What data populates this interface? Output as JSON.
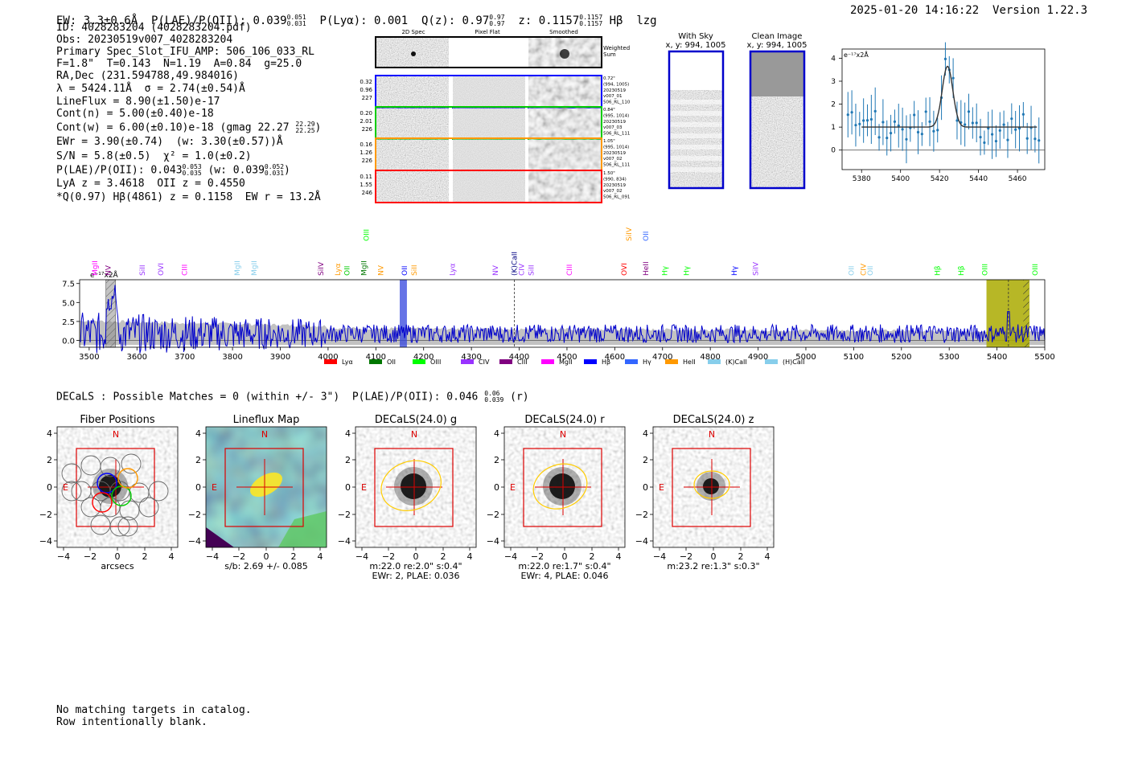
{
  "header": {
    "ew": "EW: 3.3±0.6Å",
    "plae_label": "P(LAE)/P(OII): 0.039",
    "plae_hi": "0.051",
    "plae_lo": "0.031",
    "plya": "P(Lyα): 0.001",
    "qz_label": "Q(z): 0.97",
    "qz_hi": "0.97",
    "qz_lo": "0.97",
    "z_label": "z: 0.1157",
    "z_hi": "0.1157",
    "z_lo": "0.1157",
    "line_id": "Hβ",
    "flag": "lzg",
    "timestamp": "2025-01-20 14:16:22",
    "version": "Version 1.22.3"
  },
  "info": {
    "id": "ID: 4028283204 (4028283204.pdf)",
    "obs": "Obs: 20230519v007_4028283204",
    "primary": "Primary Spec_Slot_IFU_AMP: 506_106_033_RL",
    "params": "F=1.8\"  T=0.143  N=1.19  A=0.84  g=25.0",
    "radec": "RA,Dec (231.594788,49.984016)",
    "lambda": "λ = 5424.11Å  σ = 2.74(±0.54)Å",
    "lineflux": "LineFlux = 8.90(±1.50)e-17",
    "cont_n": "Cont(n) = 5.00(±0.40)e-18",
    "cont_w": "Cont(w) = 6.00(±0.10)e-18 (gmag 22.27",
    "gmag_hi": "22.29",
    "gmag_lo": "22.25",
    "cont_w_end": ")",
    "ewr": "EWr = 3.90(±0.74)  (w: 3.30(±0.57))Å",
    "sn": "S/N = 5.8(±0.5)  χ² = 1.0(±0.2)",
    "plae": "P(LAE)/P(OII): 0.043",
    "plae_hi": "0.053",
    "plae_lo": "0.035",
    "plae_w": "(w: 0.039",
    "plae_w_hi": "0.052",
    "plae_w_lo": "0.031",
    "plae_w_end": ")",
    "lya": "LyA z = 3.4618  OII z = 0.4550",
    "q": "*Q(0.97) Hβ(4861) z = 0.1158  EW r = 13.2Å"
  },
  "cutouts": {
    "col_titles": [
      "2D Spec",
      "Pixel Flat",
      "Smoothed"
    ],
    "weighted_label": [
      "Weighted",
      "Sum"
    ],
    "rows": [
      {
        "left": [
          "0.32",
          "0.96",
          "227"
        ],
        "right": [
          "0.72\"",
          "(994, 1005)",
          "20230519",
          "v007_01",
          "506_RL_110"
        ],
        "color": "#0000ff"
      },
      {
        "left": [
          "0.20",
          "2.01",
          "226"
        ],
        "right": [
          "0.84\"",
          "(995, 1014)",
          "20230519",
          "v007_03",
          "506_RL_111"
        ],
        "color": "#00cc00"
      },
      {
        "left": [
          "0.16",
          "1.26",
          "226"
        ],
        "right": [
          "1.05\"",
          "(995, 1014)",
          "20230519",
          "v007_02",
          "506_RL_111"
        ],
        "color": "#ff9900"
      },
      {
        "left": [
          "0.11",
          "1.55",
          "246"
        ],
        "right": [
          "1.50\"",
          "(990, 834)",
          "20230519",
          "v007_02",
          "506_RL_091"
        ],
        "color": "#ff0000"
      }
    ]
  },
  "sky": {
    "with_sky_title": "With Sky",
    "with_sky_coord": "x, y: 994, 1005",
    "clean_title": "Clean Image",
    "clean_coord": "x, y: 994, 1005"
  },
  "zoom_chart": {
    "ylabel": "e⁻¹⁷x2Å",
    "xticks": [
      "5380",
      "5400",
      "5420",
      "5440",
      "5460"
    ],
    "yticks": [
      "0",
      "1",
      "2",
      "3",
      "4"
    ]
  },
  "spectrum": {
    "ylabel": "e⁻¹⁷x2Å",
    "yticks": [
      "0.0",
      "2.5",
      "5.0",
      "7.5"
    ],
    "xticks": [
      "3500",
      "3600",
      "3700",
      "3800",
      "3900",
      "4000",
      "4100",
      "4200",
      "4300",
      "4400",
      "4500",
      "4600",
      "4700",
      "4800",
      "4900",
      "5000",
      "5100",
      "5200",
      "5300",
      "5400",
      "5500"
    ],
    "legend": [
      {
        "label": "Lyα",
        "color": "#ff0000"
      },
      {
        "label": "OII",
        "color": "#007700"
      },
      {
        "label": "OIII",
        "color": "#00ff00"
      },
      {
        "label": "CIV",
        "color": "#9933ff"
      },
      {
        "label": "CIII",
        "color": "#800080"
      },
      {
        "label": "MgII",
        "color": "#ff00ff"
      },
      {
        "label": "Hβ",
        "color": "#0000ff"
      },
      {
        "label": "Hγ",
        "color": "#3366ff"
      },
      {
        "label": "HeII",
        "color": "#ff9900"
      },
      {
        "label": "(K)CaII",
        "color": "#87ceeb"
      },
      {
        "label": "(H)CaII",
        "color": "#87ceeb"
      }
    ],
    "line_labels": [
      {
        "t": "MgII",
        "c": "#ff00ff",
        "w": 3512,
        "row": 1
      },
      {
        "t": "NV",
        "c": "#800080",
        "w": 3540,
        "row": 1
      },
      {
        "t": "SiII",
        "c": "#9933ff",
        "w": 3611,
        "row": 1
      },
      {
        "t": "OVI",
        "c": "#9933ff",
        "w": 3650,
        "row": 1
      },
      {
        "t": "CIII",
        "c": "#ff00ff",
        "w": 3700,
        "row": 1
      },
      {
        "t": "MgII",
        "c": "#87ceeb",
        "w": 3810,
        "row": 1
      },
      {
        "t": "MgII",
        "c": "#87ceeb",
        "w": 3845,
        "row": 1
      },
      {
        "t": "SiIV",
        "c": "#800080",
        "w": 3985,
        "row": 1
      },
      {
        "t": "Lyα",
        "c": "#ff9900",
        "w": 4020,
        "row": 1
      },
      {
        "t": "OII",
        "c": "#00cc00",
        "w": 4040,
        "row": 1
      },
      {
        "t": "MgII",
        "c": "#007700",
        "w": 4075,
        "row": 1
      },
      {
        "t": "OIII",
        "c": "#00ff00",
        "w": 4080,
        "row": 0
      },
      {
        "t": "NV",
        "c": "#ff9900",
        "w": 4110,
        "row": 1
      },
      {
        "t": "OII",
        "c": "#0000ff",
        "w": 4160,
        "row": 1
      },
      {
        "t": "SiII",
        "c": "#ff9900",
        "w": 4180,
        "row": 1
      },
      {
        "t": "Lyα",
        "c": "#9933ff",
        "w": 4260,
        "row": 1
      },
      {
        "t": "NV",
        "c": "#9933ff",
        "w": 4350,
        "row": 1
      },
      {
        "t": "(K)CaII",
        "c": "#000080",
        "w": 4390,
        "row": 1
      },
      {
        "t": "CIV",
        "c": "#9933ff",
        "w": 4405,
        "row": 1
      },
      {
        "t": "SiII",
        "c": "#9933ff",
        "w": 4425,
        "row": 1
      },
      {
        "t": "CIII",
        "c": "#ff00ff",
        "w": 4505,
        "row": 1
      },
      {
        "t": "OVI",
        "c": "#ff0000",
        "w": 4620,
        "row": 1
      },
      {
        "t": "SiIV",
        "c": "#ff9900",
        "w": 4630,
        "row": 0
      },
      {
        "t": "HeII",
        "c": "#800080",
        "w": 4665,
        "row": 1
      },
      {
        "t": "OII",
        "c": "#3366ff",
        "w": 4665,
        "row": 0
      },
      {
        "t": "Hγ",
        "c": "#00ff00",
        "w": 4705,
        "row": 1
      },
      {
        "t": "Hγ",
        "c": "#00ff00",
        "w": 4750,
        "row": 1
      },
      {
        "t": "Hγ",
        "c": "#0000ff",
        "w": 4850,
        "row": 1
      },
      {
        "t": "SiIV",
        "c": "#9933ff",
        "w": 4895,
        "row": 1
      },
      {
        "t": "OII",
        "c": "#87ceeb",
        "w": 5095,
        "row": 1
      },
      {
        "t": "CIV",
        "c": "#ff9900",
        "w": 5120,
        "row": 1
      },
      {
        "t": "OII",
        "c": "#87ceeb",
        "w": 5135,
        "row": 1
      },
      {
        "t": "Hβ",
        "c": "#00ff00",
        "w": 5275,
        "row": 1
      },
      {
        "t": "Hβ",
        "c": "#00ff00",
        "w": 5325,
        "row": 1
      },
      {
        "t": "OIII",
        "c": "#00ff00",
        "w": 5375,
        "row": 1
      },
      {
        "t": "OIII",
        "c": "#00ff00",
        "w": 5480,
        "row": 1
      }
    ]
  },
  "decals": {
    "heading": "DECaLS : Possible Matches = 0 (within +/- 3\")  P(LAE)/P(OII): 0.046",
    "plae_hi": "0.06",
    "plae_lo": "0.039",
    "band": "(r)",
    "ticks": [
      "−4",
      "−2",
      "0",
      "2",
      "4"
    ],
    "ytick_labels": [
      "4",
      "2",
      "0",
      "−2",
      "−4"
    ],
    "panels": [
      {
        "title": "Fiber Positions",
        "sub1": "arcsecs",
        "sub2": "",
        "n": "N",
        "e": "E"
      },
      {
        "title": "Lineflux Map",
        "sub1": "s/b: 2.69 +/- 0.085",
        "sub2": "",
        "n": "N",
        "e": "E"
      },
      {
        "title": "DECaLS(24.0) g",
        "sub1": "m:22.0  re:2.0\"  s:0.4\"",
        "sub2": "EWr: 2, PLAE: 0.036",
        "n": "N",
        "e": "E"
      },
      {
        "title": "DECaLS(24.0) r",
        "sub1": "m:22.0  re:1.7\"  s:0.4\"",
        "sub2": "EWr: 4, PLAE: 0.046",
        "n": "N",
        "e": "E"
      },
      {
        "title": "DECaLS(24.0) z",
        "sub1": "m:23.2  re:1.3\"  s:0.3\"",
        "sub2": "",
        "n": "N",
        "e": "E"
      }
    ]
  },
  "footer": {
    "line1": "No matching targets in catalog.",
    "line2": "Row intentionally blank."
  }
}
